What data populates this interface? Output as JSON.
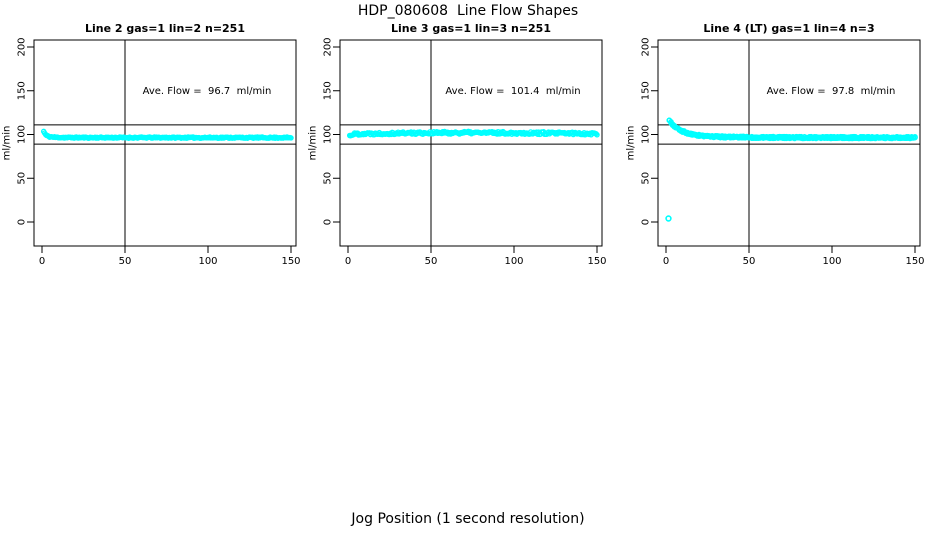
{
  "title": "HDP_080608  Line Flow Shapes",
  "xlabel": "Jog Position (1 second resolution)",
  "colors": {
    "points": "#00FFFF",
    "axis": "#000000",
    "background": "#FFFFFF"
  },
  "chart_data": [
    {
      "type": "scatter",
      "title": "Line 2 gas=1 lin=2 n=251",
      "ave_label": "Ave. Flow =  96.7  ml/min",
      "ave_flow_ml_min": 96.7,
      "ylabel": "ml/min",
      "x_ticks": [
        0,
        50,
        100,
        150
      ],
      "y_ticks": [
        0,
        50,
        100,
        150,
        200
      ],
      "xlim": [
        0,
        155
      ],
      "ylim": [
        -25,
        210
      ],
      "ref_h": [
        111,
        89
      ],
      "ref_v": 50,
      "n_points": 251,
      "x_range": [
        1,
        150
      ],
      "noise": 0.7,
      "seed": 11,
      "series_count": 1,
      "keyframes": [
        [
          1,
          103.5
        ],
        [
          2,
          100.2
        ],
        [
          3,
          98.5
        ],
        [
          5,
          97.3
        ],
        [
          8,
          96.8
        ],
        [
          15,
          96.5
        ],
        [
          150,
          96.4
        ]
      ],
      "outliers": []
    },
    {
      "type": "scatter",
      "title": "Line 3 gas=1 lin=3 n=251",
      "ave_label": "Ave. Flow =  101.4  ml/min",
      "ave_flow_ml_min": 101.4,
      "ylabel": "ml/min",
      "x_ticks": [
        0,
        50,
        100,
        150
      ],
      "y_ticks": [
        0,
        50,
        100,
        150,
        200
      ],
      "xlim": [
        0,
        155
      ],
      "ylim": [
        -25,
        210
      ],
      "ref_h": [
        111,
        89
      ],
      "ref_v": 50,
      "n_points": 251,
      "x_range": [
        1,
        150
      ],
      "noise": 1.5,
      "seed": 22,
      "series_count": 1,
      "keyframes": [
        [
          1,
          98.5
        ],
        [
          2,
          100.0
        ],
        [
          5,
          100.8
        ],
        [
          30,
          101.6
        ],
        [
          70,
          102.1
        ],
        [
          110,
          101.7
        ],
        [
          150,
          101.0
        ]
      ],
      "outliers": []
    },
    {
      "type": "scatter",
      "title": "Line 4 (LT) gas=1 lin=4 n=3",
      "ave_label": "Ave. Flow =  97.8  ml/min",
      "ave_flow_ml_min": 97.8,
      "ylabel": "ml/min",
      "x_ticks": [
        0,
        50,
        100,
        150
      ],
      "y_ticks": [
        0,
        50,
        100,
        150,
        200
      ],
      "xlim": [
        0,
        155
      ],
      "ylim": [
        -25,
        210
      ],
      "ref_h": [
        111,
        89
      ],
      "ref_v": 50,
      "n_points": 150,
      "x_range": [
        2,
        150
      ],
      "noise": 1.1,
      "seed": 33,
      "series_count": 3,
      "keyframes": [
        [
          2,
          116
        ],
        [
          4,
          111.5
        ],
        [
          6,
          108
        ],
        [
          9,
          104.5
        ],
        [
          13,
          101.5
        ],
        [
          18,
          99.3
        ],
        [
          25,
          98
        ],
        [
          35,
          97.2
        ],
        [
          60,
          96.6
        ],
        [
          150,
          96.4
        ]
      ],
      "outliers": [
        [
          1.5,
          4
        ]
      ]
    }
  ]
}
